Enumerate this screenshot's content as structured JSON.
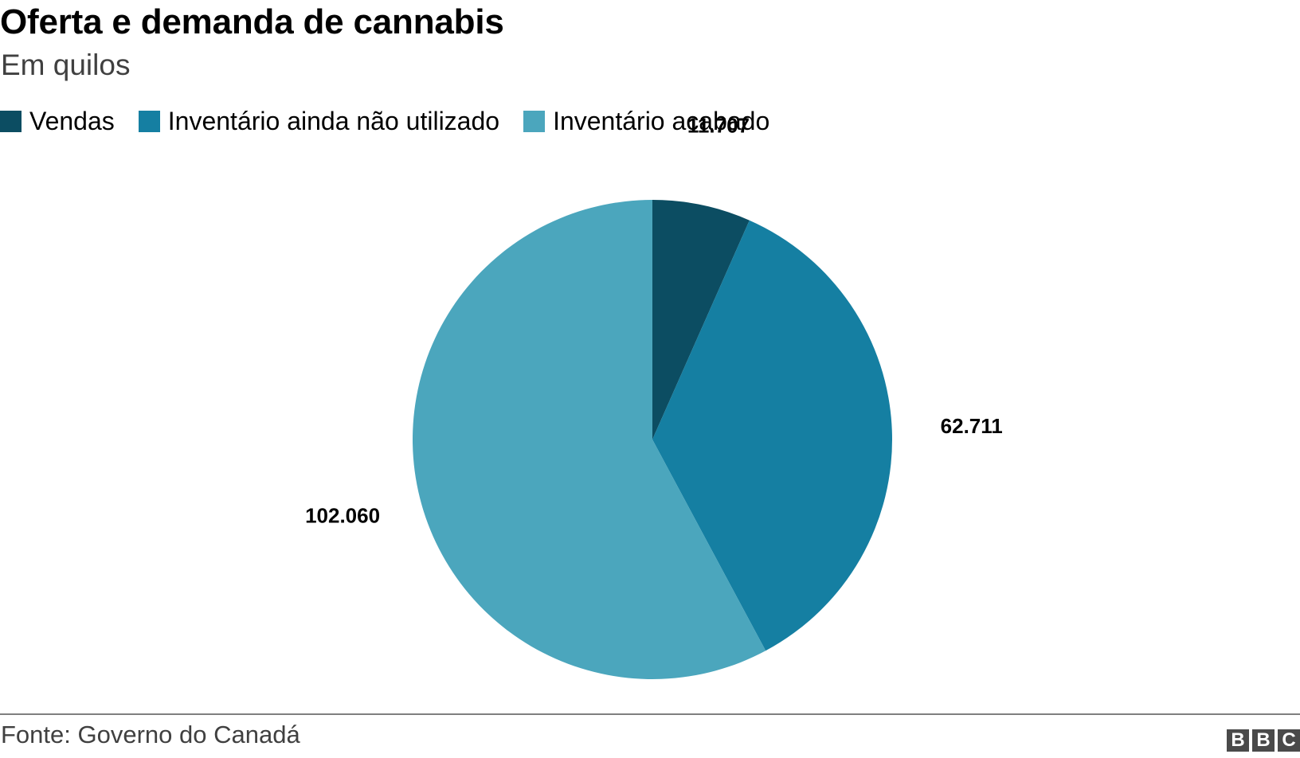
{
  "header": {
    "title": "Oferta e demanda de cannabis",
    "subtitle": "Em quilos"
  },
  "legend": [
    {
      "label": "Vendas",
      "color": "#0c4d62"
    },
    {
      "label": "Inventário ainda não utilizado",
      "color": "#157fa2"
    },
    {
      "label": "Inventário acabado",
      "color": "#4ba6bd"
    }
  ],
  "chart_data": {
    "type": "pie",
    "title": "Oferta e demanda de cannabis",
    "subtitle": "Em quilos",
    "legend_position": "top-left",
    "slices": [
      {
        "name": "Vendas",
        "value": 11707,
        "label": "11.707",
        "color": "#0c4d62"
      },
      {
        "name": "Inventário ainda não utilizado",
        "value": 62711,
        "label": "62.711",
        "color": "#157fa2"
      },
      {
        "name": "Inventário acabado",
        "value": 102060,
        "label": "102.060",
        "color": "#4ba6bd"
      }
    ]
  },
  "footer": {
    "source": "Fonte: Governo do Canadá",
    "logo_letters": [
      "B",
      "B",
      "C"
    ]
  }
}
